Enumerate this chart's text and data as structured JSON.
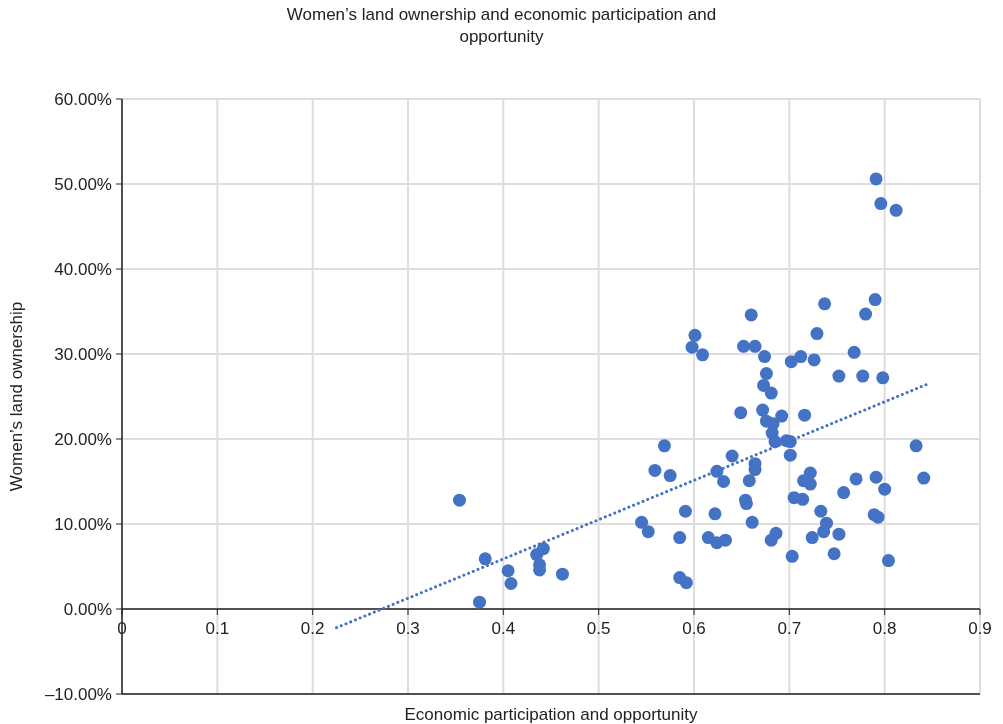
{
  "chart_data": {
    "type": "scatter",
    "title": "Women’s land ownership and economic participation and opportunity",
    "xlabel": "Economic participation and opportunity",
    "ylabel": "Women’s land ownership",
    "xlim": [
      0,
      0.9
    ],
    "xticks": [
      0,
      0.1,
      0.2,
      0.3,
      0.4,
      0.5,
      0.6,
      0.7,
      0.8,
      0.9
    ],
    "ylim": [
      -10,
      60
    ],
    "yticks": [
      {
        "value": -10,
        "label": "–10.00%"
      },
      {
        "value": 0,
        "label": "0.00%"
      },
      {
        "value": 10,
        "label": "10.00%"
      },
      {
        "value": 20,
        "label": "20.00%"
      },
      {
        "value": 30,
        "label": "30.00%"
      },
      {
        "value": 40,
        "label": "40.00%"
      },
      {
        "value": 50,
        "label": "50.00%"
      },
      {
        "value": 60,
        "label": "60.00%"
      }
    ],
    "grid": true,
    "series": [
      {
        "color": "#4472c4",
        "marker": "circle",
        "x": [
          0.354,
          0.381,
          0.375,
          0.405,
          0.408,
          0.435,
          0.442,
          0.438,
          0.438,
          0.462,
          0.545,
          0.552,
          0.559,
          0.569,
          0.575,
          0.585,
          0.591,
          0.585,
          0.592,
          0.598,
          0.601,
          0.609,
          0.791,
          0.796,
          0.812,
          0.79,
          0.737,
          0.78,
          0.66,
          0.729,
          0.652,
          0.664,
          0.674,
          0.702,
          0.712,
          0.726,
          0.768,
          0.676,
          0.673,
          0.681,
          0.752,
          0.777,
          0.798,
          0.649,
          0.672,
          0.692,
          0.716,
          0.676,
          0.683,
          0.682,
          0.685,
          0.697,
          0.701,
          0.701,
          0.64,
          0.833,
          0.624,
          0.631,
          0.664,
          0.664,
          0.658,
          0.722,
          0.715,
          0.722,
          0.77,
          0.791,
          0.841,
          0.8,
          0.757,
          0.705,
          0.714,
          0.654,
          0.655,
          0.733,
          0.622,
          0.789,
          0.793,
          0.661,
          0.739,
          0.736,
          0.752,
          0.724,
          0.686,
          0.681,
          0.615,
          0.624,
          0.633,
          0.703,
          0.747,
          0.804
        ],
        "values": [
          12.8,
          5.9,
          0.8,
          4.5,
          3.0,
          6.4,
          7.1,
          5.2,
          4.6,
          4.1,
          10.2,
          9.1,
          16.3,
          19.2,
          15.7,
          8.4,
          11.5,
          3.7,
          3.1,
          30.8,
          32.2,
          29.9,
          50.6,
          47.7,
          46.9,
          36.4,
          35.9,
          34.7,
          34.6,
          32.4,
          30.9,
          30.9,
          29.7,
          29.1,
          29.7,
          29.3,
          30.2,
          27.7,
          26.3,
          25.4,
          27.4,
          27.4,
          27.2,
          23.1,
          23.4,
          22.7,
          22.8,
          22.1,
          21.8,
          20.7,
          19.7,
          19.8,
          19.7,
          18.1,
          18.0,
          19.2,
          16.2,
          15.0,
          17.1,
          16.4,
          15.1,
          16.0,
          15.1,
          14.7,
          15.3,
          15.5,
          15.4,
          14.1,
          13.7,
          13.1,
          12.9,
          12.8,
          12.4,
          11.5,
          11.2,
          11.1,
          10.8,
          10.2,
          10.1,
          9.1,
          8.8,
          8.4,
          8.9,
          8.1,
          8.4,
          7.8,
          8.1,
          6.2,
          6.5,
          5.7
        ]
      },
      {
        "type": "line",
        "color": "#4472c4",
        "line_style": "dotted",
        "x": [
          0.225,
          0.848
        ],
        "values": [
          -2.2,
          26.6
        ]
      }
    ]
  }
}
